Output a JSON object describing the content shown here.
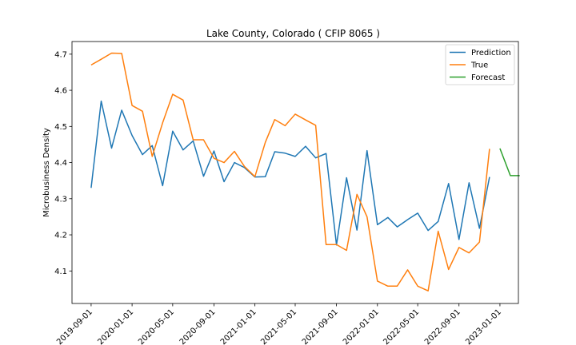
{
  "chart_data": {
    "type": "line",
    "title": "Lake County, Colorado ( CFIP 8065 )",
    "xlabel": "",
    "ylabel": "Microbusiness Density",
    "ylim": [
      4.01,
      4.735
    ],
    "xlim": [
      "2019-07-06",
      "2023-02-25"
    ],
    "grid": false,
    "legend_position": "top-right",
    "x_ticks": [
      "2019-09-01",
      "2020-01-01",
      "2020-05-01",
      "2020-09-01",
      "2021-01-01",
      "2021-05-01",
      "2021-09-01",
      "2022-01-01",
      "2022-05-01",
      "2022-09-01",
      "2023-01-01"
    ],
    "y_ticks": [
      "4.1",
      "4.2",
      "4.3",
      "4.4",
      "4.5",
      "4.6",
      "4.7"
    ],
    "series": [
      {
        "name": "Prediction",
        "color": "#1f77b4",
        "x": [
          "2019-09-01",
          "2019-10-01",
          "2019-11-01",
          "2019-12-01",
          "2020-01-01",
          "2020-02-01",
          "2020-03-01",
          "2020-04-01",
          "2020-05-01",
          "2020-06-01",
          "2020-07-01",
          "2020-08-01",
          "2020-09-01",
          "2020-10-01",
          "2020-11-01",
          "2020-12-01",
          "2021-01-01",
          "2021-02-01",
          "2021-03-01",
          "2021-04-01",
          "2021-05-01",
          "2021-06-01",
          "2021-07-01",
          "2021-08-01",
          "2021-09-01",
          "2021-10-01",
          "2021-11-01",
          "2021-12-01",
          "2022-01-01",
          "2022-02-01",
          "2022-03-01",
          "2022-04-01",
          "2022-05-01",
          "2022-06-01",
          "2022-07-01",
          "2022-08-01",
          "2022-09-01",
          "2022-10-01",
          "2022-11-01",
          "2022-12-01"
        ],
        "values": [
          4.33,
          4.57,
          4.44,
          4.545,
          4.475,
          4.422,
          4.447,
          4.336,
          4.487,
          4.435,
          4.46,
          4.362,
          4.432,
          4.347,
          4.4,
          4.386,
          4.36,
          4.361,
          4.43,
          4.426,
          4.417,
          4.445,
          4.413,
          4.425,
          4.172,
          4.358,
          4.213,
          4.433,
          4.228,
          4.248,
          4.222,
          4.242,
          4.26,
          4.212,
          4.237,
          4.342,
          4.187,
          4.344,
          4.218,
          4.36
        ]
      },
      {
        "name": "True",
        "color": "#ff7f0e",
        "x": [
          "2019-09-01",
          "2019-10-01",
          "2019-11-01",
          "2019-12-01",
          "2020-01-01",
          "2020-02-01",
          "2020-03-01",
          "2020-04-01",
          "2020-05-01",
          "2020-06-01",
          "2020-07-01",
          "2020-08-01",
          "2020-09-01",
          "2020-10-01",
          "2020-11-01",
          "2020-12-01",
          "2021-01-01",
          "2021-02-01",
          "2021-03-01",
          "2021-04-01",
          "2021-05-01",
          "2021-06-01",
          "2021-07-01",
          "2021-08-01",
          "2021-09-01",
          "2021-10-01",
          "2021-11-01",
          "2021-12-01",
          "2022-01-01",
          "2022-02-01",
          "2022-03-01",
          "2022-04-01",
          "2022-05-01",
          "2022-06-01",
          "2022-07-01",
          "2022-08-01",
          "2022-09-01",
          "2022-10-01",
          "2022-11-01",
          "2022-12-01"
        ],
        "values": [
          4.67,
          4.686,
          4.703,
          4.702,
          4.558,
          4.542,
          4.417,
          4.51,
          4.589,
          4.573,
          4.463,
          4.463,
          4.412,
          4.4,
          4.431,
          4.389,
          4.361,
          4.456,
          4.519,
          4.502,
          4.534,
          4.518,
          4.503,
          4.173,
          4.173,
          4.157,
          4.312,
          4.25,
          4.072,
          4.058,
          4.058,
          4.103,
          4.058,
          4.045,
          4.21,
          4.104,
          4.165,
          4.15,
          4.18,
          4.438
        ]
      },
      {
        "name": "Forecast",
        "color": "#2ca02c",
        "x": [
          "2023-01-01",
          "2023-02-01",
          "2023-03-01"
        ],
        "values": [
          4.439,
          4.364,
          4.364
        ]
      }
    ]
  }
}
